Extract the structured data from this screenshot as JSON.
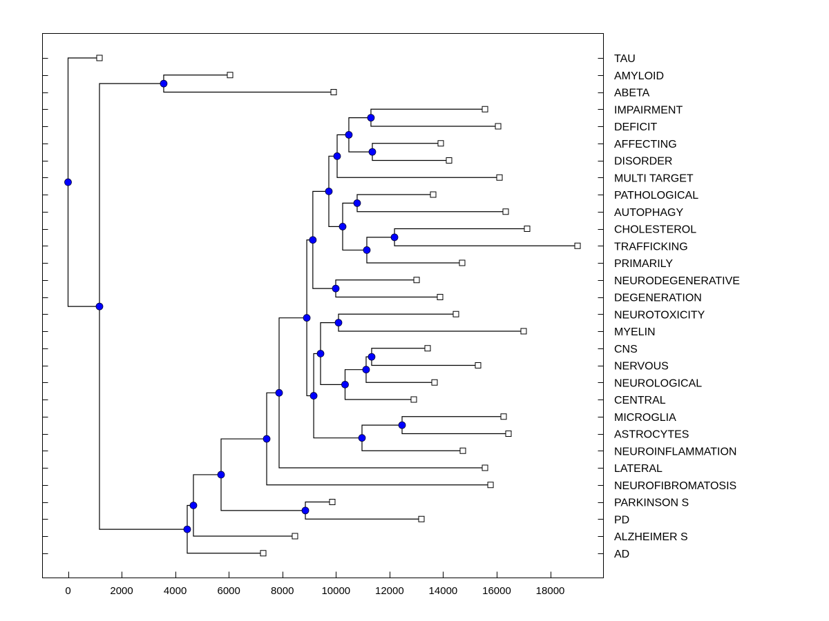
{
  "chart_data": {
    "type": "dendrogram",
    "title": "",
    "xlabel": "",
    "ylabel": "",
    "xlim": [
      -1000,
      19500
    ],
    "x_ticks": [
      0,
      2000,
      4000,
      6000,
      8000,
      10000,
      12000,
      14000,
      16000,
      18000
    ],
    "x_tick_labels": [
      "0",
      "2000",
      "4000",
      "6000",
      "8000",
      "10000",
      "12000",
      "14000",
      "16000",
      "18000"
    ],
    "grid": false,
    "colors": {
      "node_fill": "#0000ff",
      "line": "#000000",
      "leaf_fill": "#ffffff"
    },
    "leaves": [
      {
        "label": "TAU",
        "value": 1173
      },
      {
        "label": "AMYLOID",
        "value": 6047
      },
      {
        "label": "ABETA",
        "value": 9915
      },
      {
        "label": "IMPAIRMENT",
        "value": 15563
      },
      {
        "label": "DEFICIT",
        "value": 16053
      },
      {
        "label": "AFFECTING",
        "value": 13912
      },
      {
        "label": "DISORDER",
        "value": 14221
      },
      {
        "label": "MULTI TARGET",
        "value": 16104
      },
      {
        "label": "PATHOLOGICAL",
        "value": 13629
      },
      {
        "label": "AUTOPHAGY",
        "value": 16336
      },
      {
        "label": "CHOLESTEROL",
        "value": 17135
      },
      {
        "label": "TRAFFICKING",
        "value": 19018
      },
      {
        "label": "PRIMARILY",
        "value": 14711
      },
      {
        "label": "NEURODEGENERATIVE",
        "value": 13010
      },
      {
        "label": "DEGENERATION",
        "value": 13886
      },
      {
        "label": "NEUROTOXICITY",
        "value": 14479
      },
      {
        "label": "MYELIN",
        "value": 17006
      },
      {
        "label": "CNS",
        "value": 13422
      },
      {
        "label": "NERVOUS",
        "value": 15304
      },
      {
        "label": "NEUROLOGICAL",
        "value": 13680
      },
      {
        "label": "CENTRAL",
        "value": 12906
      },
      {
        "label": "MICROGLIA",
        "value": 16259
      },
      {
        "label": "ASTROCYTES",
        "value": 16439
      },
      {
        "label": "NEUROINFLAMMATION",
        "value": 14737
      },
      {
        "label": "LATERAL",
        "value": 15563
      },
      {
        "label": "NEUROFIBROMATOSIS",
        "value": 15770
      },
      {
        "label": "PARKINSON S",
        "value": 9863
      },
      {
        "label": "PD",
        "value": 13190
      },
      {
        "label": "ALZHEIMER S",
        "value": 8470
      },
      {
        "label": "AD",
        "value": 7285
      }
    ],
    "nodes": [
      {
        "id": "n_root",
        "value": 0,
        "children": [
          "TAU",
          "n1"
        ]
      },
      {
        "id": "n1",
        "value": 1173,
        "children": [
          "n_ab",
          "n_main"
        ]
      },
      {
        "id": "n_ab",
        "value": 3570,
        "children": [
          "AMYLOID",
          "ABETA"
        ]
      },
      {
        "id": "n_main",
        "value": 4448,
        "children": [
          "n_a",
          "AD"
        ]
      },
      {
        "id": "n_a",
        "value": 4680,
        "children": [
          "n_b",
          "ALZHEIMER S"
        ]
      },
      {
        "id": "n_b",
        "value": 5712,
        "children": [
          "n_c",
          "n_pd"
        ]
      },
      {
        "id": "n_pd",
        "value": 8858,
        "children": [
          "PARKINSON S",
          "PD"
        ]
      },
      {
        "id": "n_c",
        "value": 7414,
        "children": [
          "n_d",
          "NEUROFIBROMATOSIS"
        ]
      },
      {
        "id": "n_d",
        "value": 7878,
        "children": [
          "n_e",
          "LATERAL"
        ]
      },
      {
        "id": "n_e",
        "value": 8911,
        "children": [
          "n_f",
          "n_g"
        ]
      },
      {
        "id": "n_f",
        "value": 9137,
        "children": [
          "n_h",
          "n_nd"
        ]
      },
      {
        "id": "n_nd",
        "value": 9992,
        "children": [
          "NEURODEGENERATIVE",
          "DEGENERATION"
        ]
      },
      {
        "id": "n_h",
        "value": 9734,
        "children": [
          "n_i",
          "n_j"
        ]
      },
      {
        "id": "n_i",
        "value": 10044,
        "children": [
          "n_k",
          "MULTI TARGET"
        ]
      },
      {
        "id": "n_k",
        "value": 10481,
        "children": [
          "n_imp",
          "n_aff"
        ]
      },
      {
        "id": "n_imp",
        "value": 11306,
        "children": [
          "IMPAIRMENT",
          "DEFICIT"
        ]
      },
      {
        "id": "n_aff",
        "value": 11358,
        "children": [
          "AFFECTING",
          "DISORDER"
        ]
      },
      {
        "id": "n_j",
        "value": 10250,
        "children": [
          "n_pa",
          "n_l"
        ]
      },
      {
        "id": "n_pa",
        "value": 10791,
        "children": [
          "PATHOLOGICAL",
          "AUTOPHAGY"
        ]
      },
      {
        "id": "n_l",
        "value": 11152,
        "children": [
          "n_ct",
          "PRIMARILY"
        ]
      },
      {
        "id": "n_ct",
        "value": 12185,
        "children": [
          "CHOLESTEROL",
          "TRAFFICKING"
        ]
      },
      {
        "id": "n_g",
        "value": 9169,
        "children": [
          "n_m",
          "n_n"
        ]
      },
      {
        "id": "n_m",
        "value": 9425,
        "children": [
          "n_tm",
          "n_o"
        ]
      },
      {
        "id": "n_tm",
        "value": 10095,
        "children": [
          "NEUROTOXICITY",
          "MYELIN"
        ]
      },
      {
        "id": "n_o",
        "value": 10340,
        "children": [
          "n_p",
          "CENTRAL"
        ]
      },
      {
        "id": "n_p",
        "value": 11126,
        "children": [
          "n_cn",
          "NEUROLOGICAL"
        ]
      },
      {
        "id": "n_cn",
        "value": 11332,
        "children": [
          "CNS",
          "NERVOUS"
        ]
      },
      {
        "id": "n_n",
        "value": 10972,
        "children": [
          "n_ma",
          "NEUROINFLAMMATION"
        ]
      },
      {
        "id": "n_ma",
        "value": 12468,
        "children": [
          "MICROGLIA",
          "ASTROCYTES"
        ]
      }
    ]
  }
}
